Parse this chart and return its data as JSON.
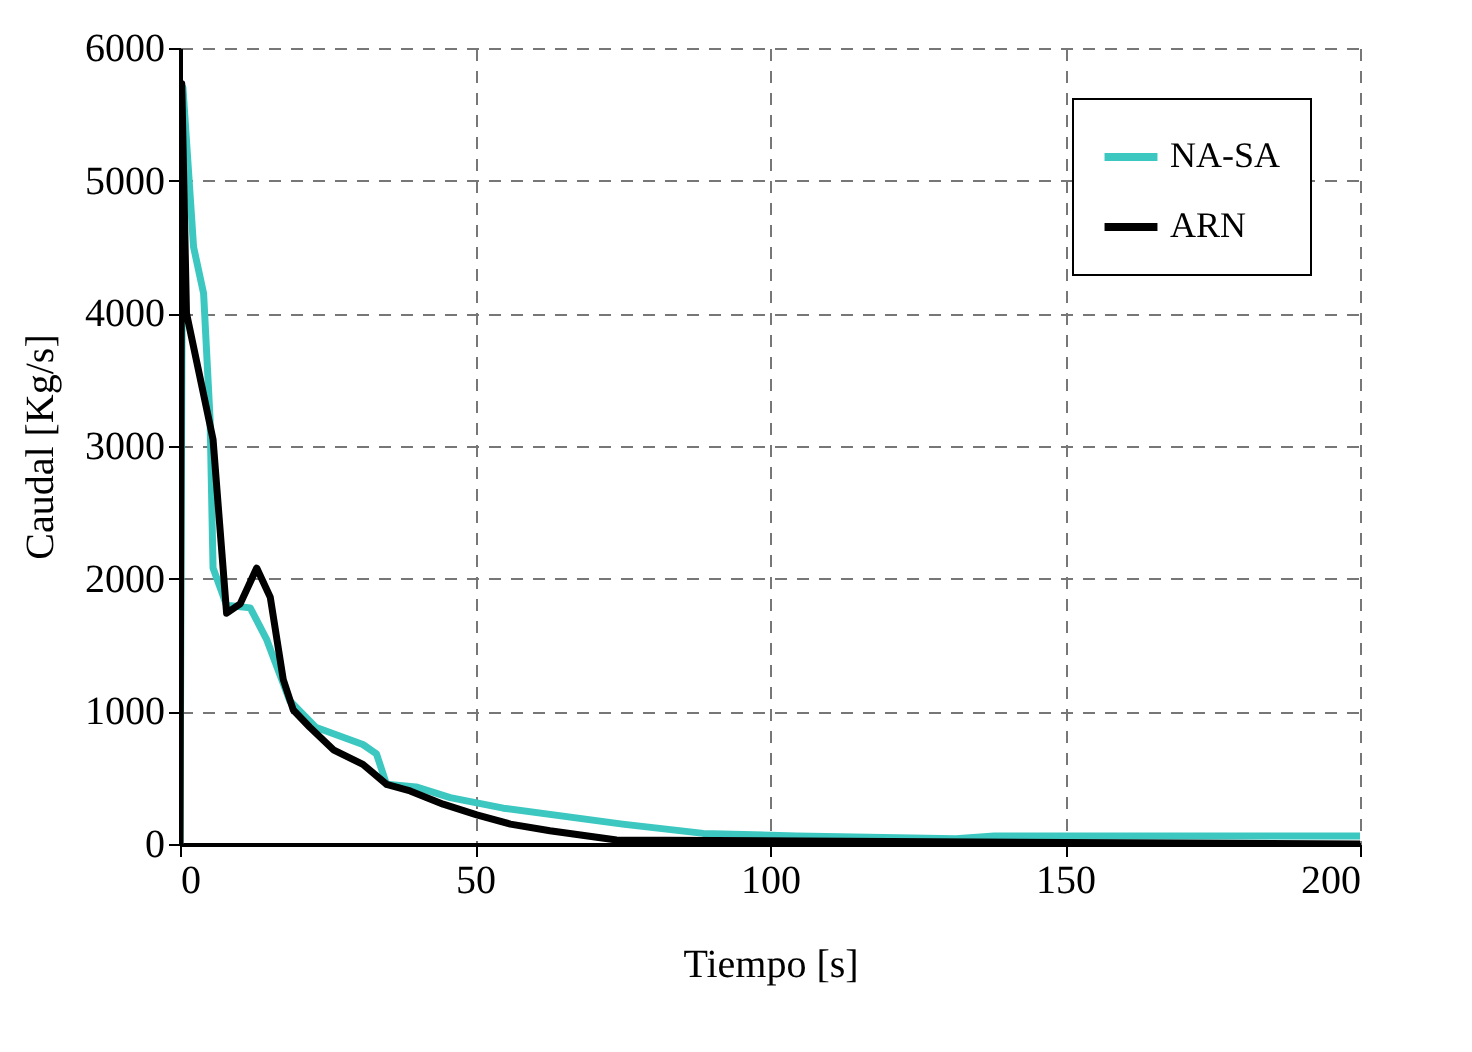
{
  "chart_data": {
    "type": "line",
    "xlabel": "Tiempo [s]",
    "ylabel": "Caudal [Kg/s]",
    "xlim": [
      0,
      200
    ],
    "xticks": [
      0,
      50,
      100,
      150,
      200
    ],
    "ylim": [
      0,
      6000
    ],
    "yticks": [
      0,
      1000,
      2000,
      3000,
      4000,
      5000,
      6000
    ],
    "grid": true,
    "legend": "top right",
    "line_style": "solid",
    "marker": "none",
    "series": [
      {
        "name": "NA-SA",
        "color": "#3cc8c0",
        "x": [
          0,
          0.5,
          2.3,
          4,
          5.1,
          5.6,
          7.9,
          11.9,
          14.7,
          18.6,
          23,
          31,
          33.3,
          35,
          40,
          45.8,
          54.8,
          75,
          88.7,
          104.5,
          131.5,
          138,
          172,
          200
        ],
        "values": [
          0,
          5700,
          4500,
          4150,
          3200,
          2080,
          1800,
          1780,
          1540,
          1080,
          880,
          750,
          680,
          450,
          430,
          350,
          270,
          150,
          80,
          60,
          40,
          60,
          60,
          60
        ]
      },
      {
        "name": "ARN",
        "color": "#000000",
        "x": [
          0,
          0.3,
          1.1,
          5.6,
          7.9,
          10.2,
          13,
          15.3,
          17.5,
          19.2,
          22,
          26,
          31,
          35,
          39,
          44.6,
          50.3,
          56,
          62.7,
          74,
          200
        ],
        "values": [
          0,
          5730,
          4000,
          3050,
          1740,
          1810,
          2080,
          1860,
          1240,
          1010,
          880,
          710,
          600,
          450,
          400,
          300,
          220,
          150,
          100,
          30,
          0
        ]
      }
    ]
  }
}
